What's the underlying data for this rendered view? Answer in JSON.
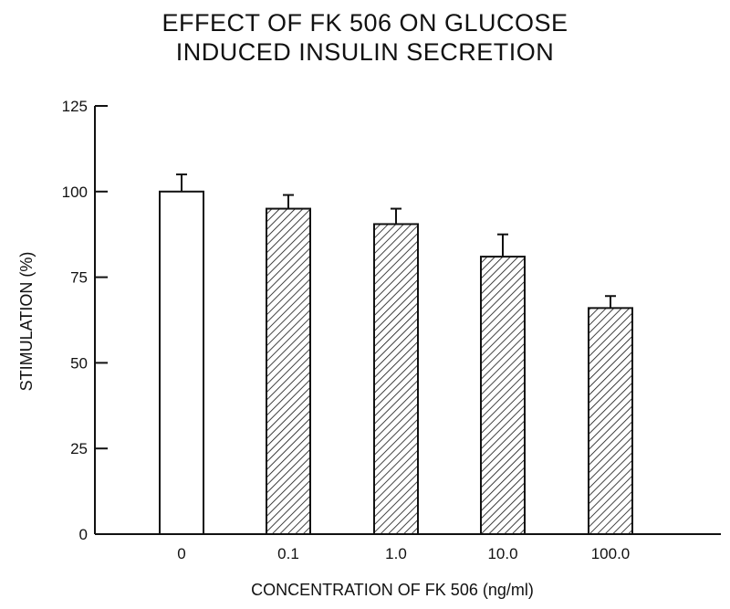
{
  "chart_data": {
    "type": "bar",
    "title": [
      "EFFECT OF FK 506 ON GLUCOSE",
      "INDUCED INSULIN SECRETION"
    ],
    "xlabel": "CONCENTRATION OF FK 506 (ng/ml)",
    "ylabel": "STIMULATION (%)",
    "categories": [
      "0",
      "0.1",
      "1.0",
      "10.0",
      "100.0"
    ],
    "values": [
      100,
      95,
      90.5,
      81,
      66
    ],
    "error_plus": [
      5,
      4,
      4.5,
      6.5,
      3.5
    ],
    "fill": [
      "open",
      "hatched",
      "hatched",
      "hatched",
      "hatched"
    ],
    "ylim": [
      0,
      125
    ],
    "yticks": [
      0,
      25,
      50,
      75,
      100,
      125
    ],
    "grid": false,
    "legend": "none"
  }
}
